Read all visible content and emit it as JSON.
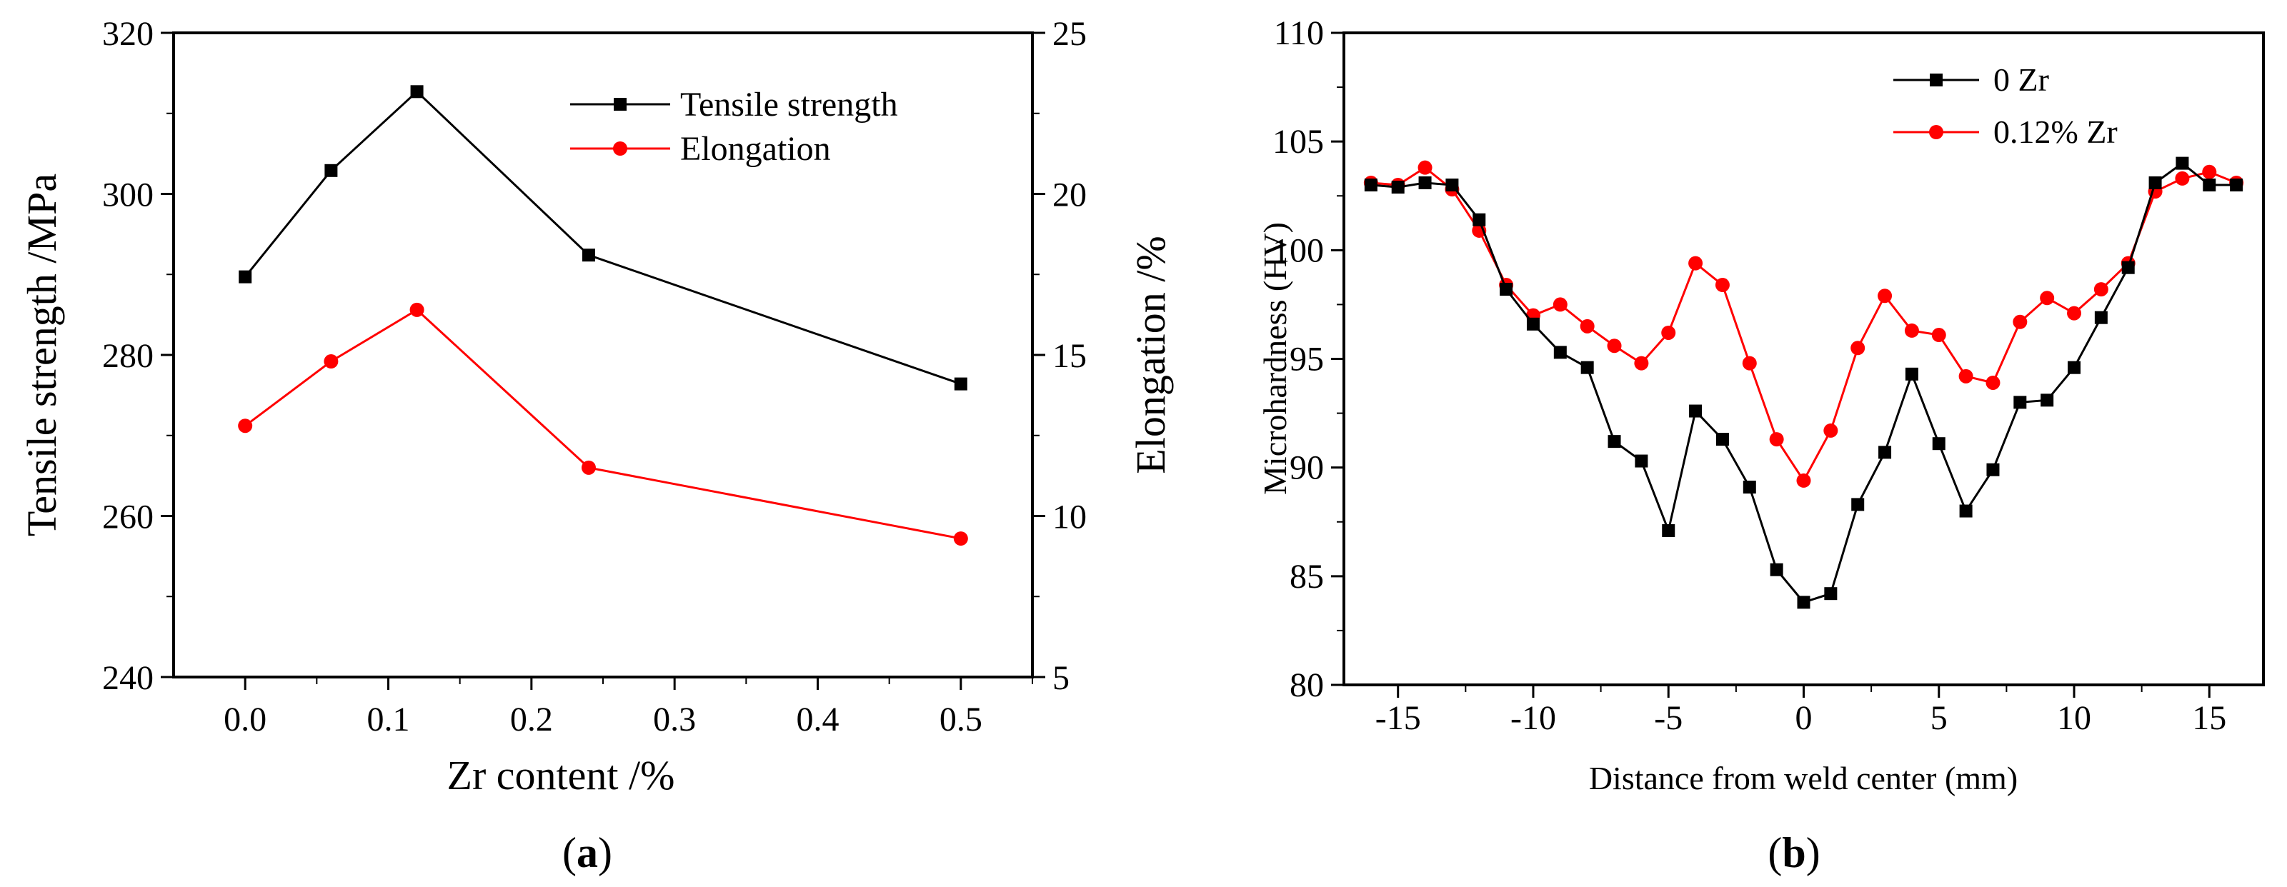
{
  "chart_data": [
    {
      "type": "line",
      "panel_caption": {
        "open": "(",
        "letter": "a",
        "close": ")"
      },
      "xlabel": "Zr content /%",
      "ylabel_left": "Tensile strength /MPa",
      "ylabel_right": "Elongation /%",
      "xlim": [
        -0.05,
        0.55
      ],
      "ylim_left": [
        240,
        320
      ],
      "ylim_right": [
        5,
        25
      ],
      "xticks": [
        0.0,
        0.1,
        0.2,
        0.3,
        0.4,
        0.5
      ],
      "xtick_labels": [
        "0.0",
        "0.1",
        "0.2",
        "0.3",
        "0.4",
        "0.5"
      ],
      "yticks_left": [
        240,
        260,
        280,
        300,
        320
      ],
      "yticks_left_labels": [
        "240",
        "260",
        "280",
        "300",
        "320"
      ],
      "yticks_right": [
        5,
        10,
        15,
        20,
        25
      ],
      "yticks_right_labels": [
        "5",
        "10",
        "15",
        "20",
        "25"
      ],
      "legend_position": "top-right",
      "series": [
        {
          "name": "Tensile strength",
          "axis": "left",
          "color": "#000000",
          "marker": "square",
          "x": [
            0.0,
            0.06,
            0.12,
            0.24,
            0.5
          ],
          "y": [
            289.7,
            302.9,
            312.7,
            292.4,
            276.4
          ]
        },
        {
          "name": "Elongation",
          "axis": "right",
          "color": "#ff0000",
          "marker": "circle",
          "x": [
            0.0,
            0.06,
            0.12,
            0.24,
            0.5
          ],
          "y": [
            12.8,
            14.8,
            16.4,
            11.5,
            9.3
          ]
        }
      ]
    },
    {
      "type": "line",
      "panel_caption": {
        "open": "(",
        "letter": "b",
        "close": ")"
      },
      "xlabel": "Distance from weld center (mm)",
      "ylabel": "Microhardness (HV)",
      "xlim": [
        -17,
        17
      ],
      "ylim": [
        80,
        110
      ],
      "xticks": [
        -15,
        -10,
        -5,
        0,
        5,
        10,
        15
      ],
      "xtick_labels": [
        "-15",
        "-10",
        "-5",
        "0",
        "5",
        "10",
        "15"
      ],
      "yticks": [
        80,
        85,
        90,
        95,
        100,
        105,
        110
      ],
      "ytick_labels": [
        "80",
        "85",
        "90",
        "95",
        "100",
        "105",
        "110"
      ],
      "legend_position": "top-center",
      "series": [
        {
          "name": "0 Zr",
          "color": "#000000",
          "marker": "square",
          "x": [
            -16,
            -15,
            -14,
            -13,
            -12,
            -11,
            -10,
            -9,
            -8,
            -7,
            -6,
            -5,
            -4,
            -3,
            -2,
            -1,
            0,
            1,
            2,
            3,
            4,
            5,
            6,
            7,
            8,
            9,
            10,
            11,
            12,
            13,
            14,
            15,
            16
          ],
          "y": [
            103.0,
            102.9,
            103.1,
            103.0,
            101.4,
            98.2,
            96.6,
            95.3,
            94.6,
            91.2,
            90.3,
            87.1,
            92.6,
            91.3,
            89.1,
            85.3,
            83.8,
            84.2,
            88.3,
            90.7,
            94.3,
            91.1,
            88.0,
            89.9,
            93.0,
            93.1,
            94.6,
            96.9,
            99.2,
            103.1,
            104.0,
            103.0,
            103.0
          ]
        },
        {
          "name": "0.12% Zr",
          "color": "#ff0000",
          "marker": "circle",
          "x": [
            -16,
            -15,
            -14,
            -13,
            -12,
            -11,
            -10,
            -9,
            -8,
            -7,
            -6,
            -5,
            -4,
            -3,
            -2,
            -1,
            0,
            1,
            2,
            3,
            4,
            5,
            6,
            7,
            8,
            9,
            10,
            11,
            12,
            13,
            14,
            15,
            16
          ],
          "y": [
            103.1,
            103.0,
            103.8,
            102.8,
            100.9,
            98.4,
            97.0,
            97.5,
            96.5,
            95.6,
            94.8,
            96.2,
            99.4,
            98.4,
            94.8,
            91.3,
            89.4,
            91.7,
            95.5,
            97.9,
            96.3,
            96.1,
            94.2,
            93.9,
            96.7,
            97.8,
            97.1,
            98.2,
            99.4,
            102.7,
            103.3,
            103.6,
            103.1
          ]
        }
      ]
    }
  ]
}
